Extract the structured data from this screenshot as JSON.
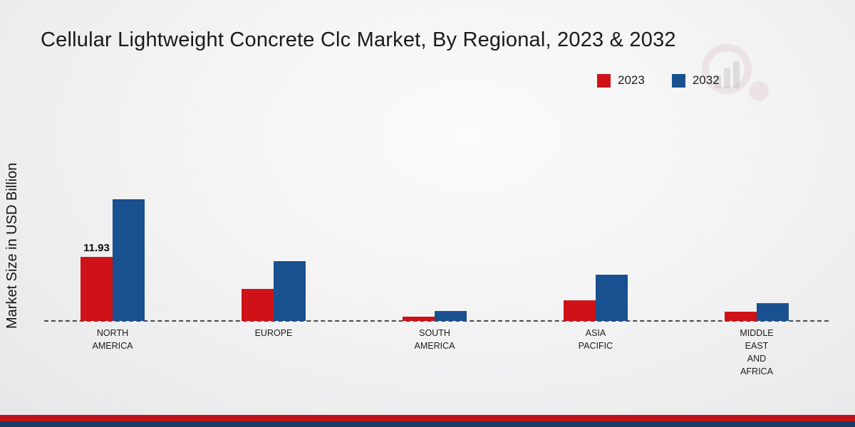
{
  "title": "Cellular Lightweight Concrete Clc Market, By Regional, 2023 & 2032",
  "ylabel": "Market Size in USD Billion",
  "legend": [
    {
      "label": "2023",
      "color": "#cf1217"
    },
    {
      "label": "2032",
      "color": "#19508f"
    }
  ],
  "chart_data": {
    "type": "bar",
    "title": "Cellular Lightweight Concrete Clc Market, By Regional, 2023 & 2032",
    "xlabel": "",
    "ylabel": "Market Size in USD Billion",
    "units": "USD Billion",
    "categories": [
      "NORTH AMERICA",
      "EUROPE",
      "SOUTH AMERICA",
      "ASIA PACIFIC",
      "MIDDLE EAST AND AFRICA"
    ],
    "categories_lines": [
      [
        "NORTH",
        "AMERICA"
      ],
      [
        "EUROPE"
      ],
      [
        "SOUTH",
        "AMERICA"
      ],
      [
        "ASIA",
        "PACIFIC"
      ],
      [
        "MIDDLE",
        "EAST",
        "AND",
        "AFRICA"
      ]
    ],
    "series": [
      {
        "name": "2023",
        "color": "#cf1217",
        "values": [
          11.93,
          6.0,
          0.8,
          3.9,
          1.7
        ]
      },
      {
        "name": "2032",
        "color": "#19508f",
        "values": [
          22.7,
          11.1,
          1.9,
          8.6,
          3.3
        ]
      }
    ],
    "annotations": [
      {
        "series": "2023",
        "category_index": 0,
        "text": "11.93"
      }
    ],
    "axis": {
      "baseline_style": "dashed",
      "gridlines": false,
      "y_ticks_visible": false
    },
    "legend_position": "top-right"
  }
}
